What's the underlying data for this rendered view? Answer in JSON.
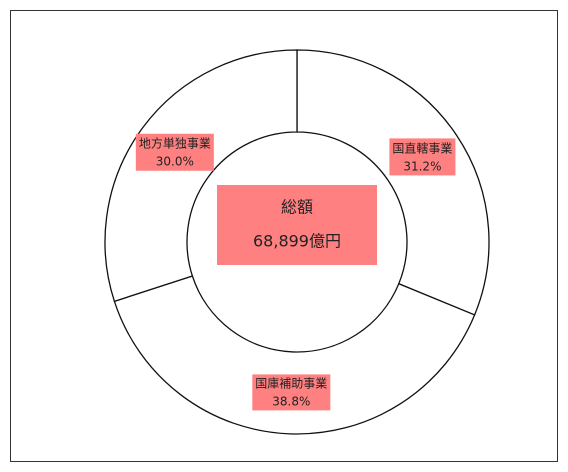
{
  "chart_data": {
    "type": "donut",
    "categories": [
      "国直轄事業",
      "国庫補助事業",
      "地方単独事業"
    ],
    "values": [
      31.2,
      38.8,
      30.0
    ],
    "value_labels": [
      "31.2%",
      "38.8%",
      "30.0%"
    ],
    "color": "#ffffff",
    "label_color": "#ff8080",
    "annotations": [
      "総額",
      "68,899億円"
    ]
  }
}
